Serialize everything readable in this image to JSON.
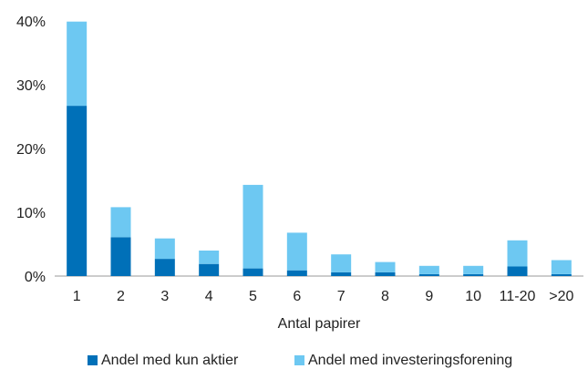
{
  "chart_data": {
    "type": "bar",
    "stacked": true,
    "categories": [
      "1",
      "2",
      "3",
      "4",
      "5",
      "6",
      "7",
      "8",
      "9",
      "10",
      "11-20",
      ">20"
    ],
    "series": [
      {
        "name": "Andel med kun aktier",
        "color": "#0070B8",
        "values": [
          26.7,
          6.1,
          2.7,
          1.9,
          1.2,
          0.9,
          0.6,
          0.6,
          0.3,
          0.3,
          1.5,
          0.3
        ]
      },
      {
        "name": "Andel med investeringsforening",
        "color": "#6DC8F2",
        "values": [
          13.2,
          4.7,
          3.2,
          2.1,
          13.1,
          5.9,
          2.8,
          1.6,
          1.3,
          1.3,
          4.1,
          2.2
        ]
      }
    ],
    "xlabel": "Antal papirer",
    "ylabel": "",
    "ylim": [
      0,
      40
    ],
    "yticks": [
      "0%",
      "10%",
      "20%",
      "30%",
      "40%"
    ],
    "yticks_values": [
      0,
      10,
      20,
      30,
      40
    ],
    "grid": false,
    "legend_position": "bottom"
  }
}
